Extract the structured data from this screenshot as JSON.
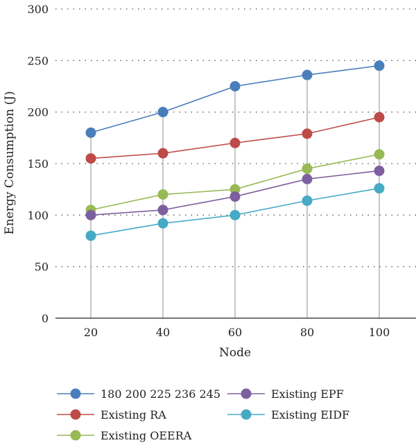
{
  "chart_data": {
    "type": "line",
    "xlabel": "Node",
    "ylabel": "Energy Consumption (J)",
    "categories": [
      "20",
      "40",
      "60",
      "80",
      "100"
    ],
    "ylim": [
      0,
      300
    ],
    "yticks": [
      "0",
      "50",
      "100",
      "150",
      "200",
      "250",
      "300"
    ],
    "grid": "horizontal dotted",
    "drop_lines": true,
    "legend_position": "bottom",
    "series": [
      {
        "name": "180 200 225 236 245",
        "color": "#4a7ebb",
        "values": [
          180,
          200,
          225,
          236,
          245
        ]
      },
      {
        "name": "Existing RA",
        "color": "#be4b48",
        "values": [
          155,
          160,
          170,
          179,
          195
        ]
      },
      {
        "name": "Existing OEERA",
        "color": "#98b954",
        "values": [
          105,
          120,
          125,
          145,
          159
        ]
      },
      {
        "name": "Existing EPF",
        "color": "#7d5fa0",
        "values": [
          100,
          105,
          118,
          135,
          143
        ]
      },
      {
        "name": "Existing EIDF",
        "color": "#46aac5",
        "values": [
          80,
          92,
          100,
          114,
          126
        ]
      }
    ]
  }
}
